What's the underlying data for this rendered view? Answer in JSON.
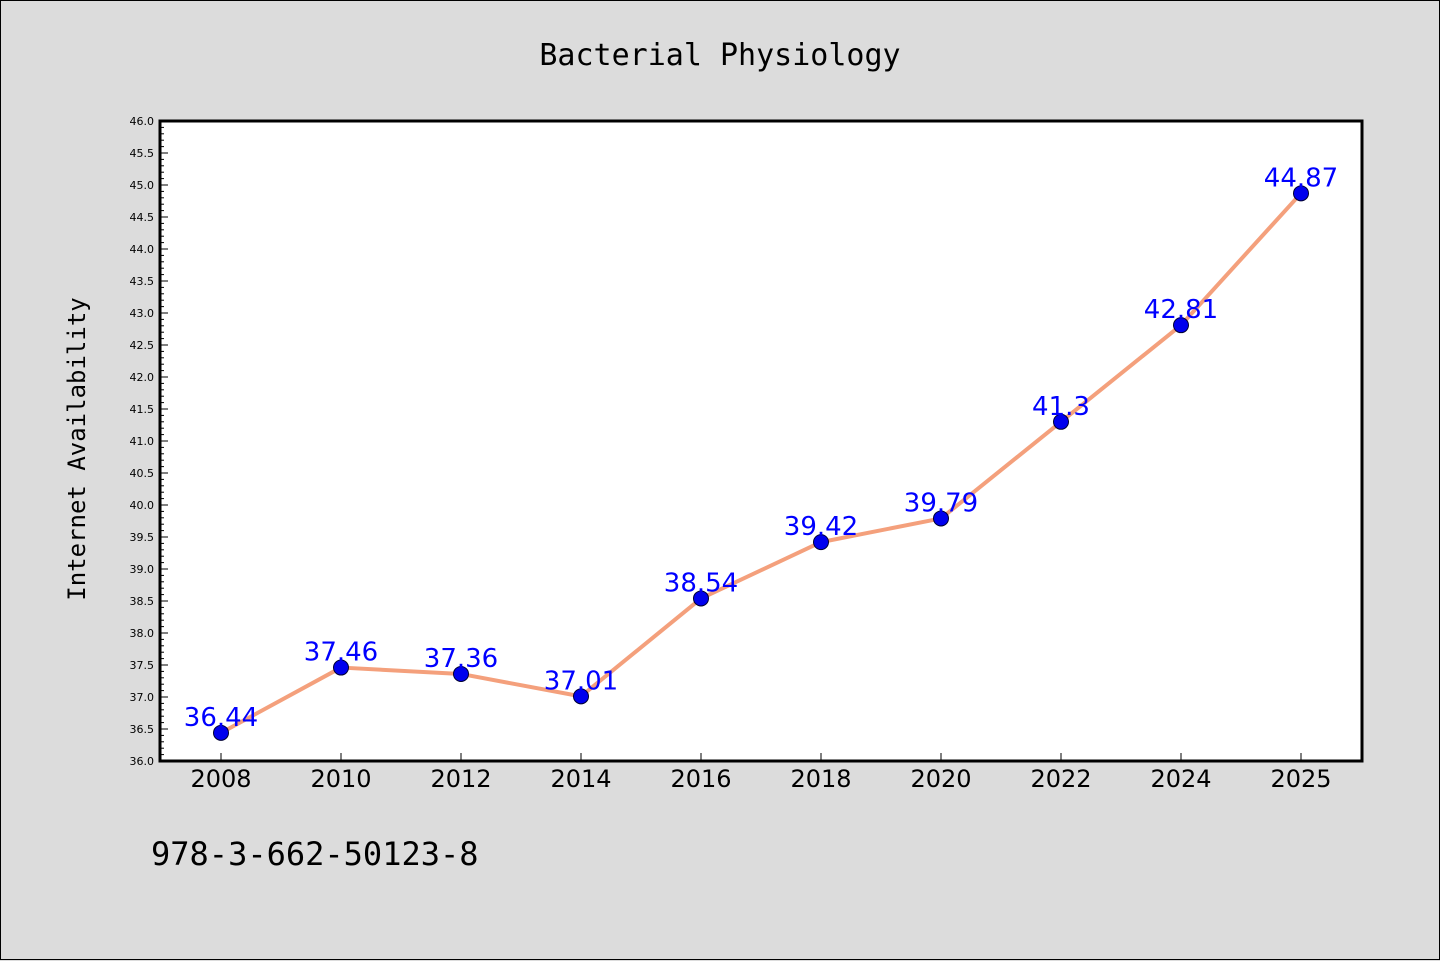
{
  "chart_data": {
    "type": "line",
    "title": "Bacterial Physiology",
    "xlabel": "",
    "ylabel": "Internet Availability",
    "categories": [
      "2008",
      "2010",
      "2012",
      "2014",
      "2016",
      "2018",
      "2020",
      "2022",
      "2024",
      "2025"
    ],
    "series": [
      {
        "values": [
          36.44,
          37.46,
          37.36,
          37.01,
          38.54,
          39.42,
          39.79,
          41.3,
          42.81,
          44.87
        ],
        "data_labels": [
          "36.44",
          "37.46",
          "37.36",
          "37.01",
          "38.54",
          "39.42",
          "39.79",
          "41.3",
          "42.81",
          "44.87"
        ],
        "line_color": "#f4a07c",
        "marker_color": "#0000ee",
        "label_color": "#0000ff"
      }
    ],
    "ylim": [
      36.0,
      46.0
    ],
    "yticks": [
      "36.0",
      "36.5",
      "37.0",
      "37.5",
      "38.0",
      "38.5",
      "39.0",
      "39.5",
      "40.0",
      "40.5",
      "41.0",
      "41.5",
      "42.0",
      "42.5",
      "43.0",
      "43.5",
      "44.0",
      "44.5",
      "45.0",
      "45.5",
      "46.0"
    ],
    "grid": false,
    "legend": "none"
  },
  "footer_text": "978-3-662-50123-8"
}
